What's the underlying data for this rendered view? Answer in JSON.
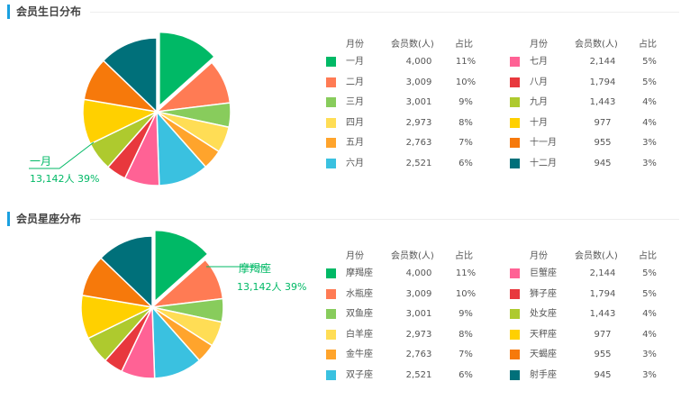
{
  "colors": {
    "accent": "#1aa0e0",
    "palette": [
      "#00b966",
      "#ff7b54",
      "#88cc5c",
      "#ffdd55",
      "#ffa42c",
      "#3ac1e0",
      "#ff6295",
      "#e8383d",
      "#aeca2e",
      "#ffd000",
      "#f6790b",
      "#00707a"
    ],
    "highlight_text": "#00b966"
  },
  "legend_headers": {
    "month": "月份",
    "count": "会员数(人)",
    "pct": "占比"
  },
  "chart_data": [
    {
      "type": "pie",
      "title": "会员生日分布",
      "categories": [
        "一月",
        "二月",
        "三月",
        "四月",
        "五月",
        "六月",
        "七月",
        "八月",
        "九月",
        "十月",
        "十一月",
        "十二月"
      ],
      "values": [
        4000,
        3009,
        3001,
        2973,
        2763,
        2521,
        2144,
        1794,
        1443,
        977,
        955,
        945
      ],
      "count_labels": [
        "4,000",
        "3,009",
        "3,001",
        "2,973",
        "2,763",
        "2,521",
        "2,144",
        "1,794",
        "1,443",
        "977",
        "955",
        "945"
      ],
      "pct_labels": [
        "11%",
        "10%",
        "9%",
        "8%",
        "7%",
        "6%",
        "5%",
        "5%",
        "4%",
        "4%",
        "3%",
        "3%"
      ],
      "slice_values": [
        13142,
        9500,
        5200,
        5600,
        4300,
        10800,
        7500,
        4300,
        6200,
        9700,
        9300,
        12600
      ],
      "highlight": {
        "label": "一月",
        "value_text": "13,142人  39%"
      }
    },
    {
      "type": "pie",
      "title": "会员星座分布",
      "categories": [
        "摩羯座",
        "水瓶座",
        "双鱼座",
        "白羊座",
        "金牛座",
        "双子座",
        "巨蟹座",
        "狮子座",
        "处女座",
        "天秤座",
        "天蝎座",
        "射手座"
      ],
      "values": [
        4000,
        3009,
        3001,
        2973,
        2763,
        2521,
        2144,
        1794,
        1443,
        977,
        955,
        945
      ],
      "count_labels": [
        "4,000",
        "3,009",
        "3,001",
        "2,973",
        "2,763",
        "2,521",
        "2,144",
        "1,794",
        "1,443",
        "977",
        "955",
        "945"
      ],
      "pct_labels": [
        "11%",
        "10%",
        "9%",
        "8%",
        "7%",
        "6%",
        "5%",
        "5%",
        "4%",
        "4%",
        "3%",
        "3%"
      ],
      "slice_values": [
        13142,
        9500,
        5200,
        5600,
        4300,
        10800,
        7500,
        4300,
        6200,
        9700,
        9300,
        12600
      ],
      "highlight": {
        "label": "摩羯座",
        "value_text": "13,142人  39%"
      }
    }
  ]
}
